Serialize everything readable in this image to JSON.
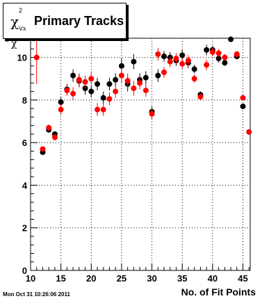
{
  "chart_data": {
    "type": "scatter",
    "title": "Primary Tracks",
    "ylabel_symbol": "χ",
    "ylabel_superscript": "2",
    "ylabel_subscript": "Vx",
    "xlabel": "No. of Fit Points",
    "xlim": [
      10,
      46.2
    ],
    "ylim": [
      0,
      10.9
    ],
    "x_ticks": [
      "10",
      "15",
      "20",
      "25",
      "30",
      "35",
      "40",
      "45"
    ],
    "y_ticks": [
      "0",
      "2",
      "4",
      "6",
      "8",
      "10"
    ],
    "grid": true,
    "series": [
      {
        "color": "#000000",
        "x": [
          12,
          13,
          14,
          15,
          16,
          17,
          18,
          19,
          20,
          21,
          22,
          23,
          24,
          25,
          26,
          27,
          28,
          29,
          30,
          31,
          32,
          33,
          34,
          35,
          36,
          37,
          38,
          39,
          40,
          41,
          42,
          43,
          44,
          45
        ],
        "y": [
          5.55,
          6.6,
          6.4,
          7.9,
          8.5,
          9.15,
          8.9,
          8.55,
          8.4,
          8.75,
          8.1,
          8.75,
          8.95,
          9.6,
          8.75,
          9.8,
          8.95,
          9.05,
          7.45,
          9.15,
          10.05,
          10.0,
          9.85,
          10.1,
          9.75,
          9.45,
          8.25,
          10.35,
          10.35,
          9.95,
          9.75,
          10.85,
          10.05,
          7.7
        ],
        "err": [
          0.1,
          0.12,
          0.12,
          0.25,
          0.25,
          0.3,
          0.3,
          0.3,
          0.28,
          0.3,
          0.3,
          0.3,
          0.3,
          0.35,
          0.35,
          0.35,
          0.3,
          0.3,
          0.25,
          0.3,
          0.25,
          0.25,
          0.25,
          0.25,
          0.25,
          0.2,
          0.15,
          0.25,
          0.2,
          0.2,
          0.15,
          0.1,
          0.15,
          0.1
        ]
      },
      {
        "color": "#ff0000",
        "x": [
          11,
          12,
          13,
          14,
          15,
          16,
          17,
          18,
          19,
          20,
          21,
          22,
          23,
          24,
          25,
          26,
          27,
          28,
          29,
          30,
          31,
          32,
          33,
          34,
          35,
          36,
          37,
          38,
          39,
          40,
          41,
          42,
          44,
          45,
          46
        ],
        "y": [
          10.0,
          5.7,
          6.7,
          6.25,
          7.55,
          8.45,
          8.3,
          8.95,
          8.85,
          9.0,
          7.55,
          7.55,
          8.05,
          8.4,
          9.15,
          8.9,
          8.55,
          8.8,
          8.45,
          7.35,
          10.15,
          9.3,
          9.8,
          9.95,
          9.7,
          9.85,
          9.0,
          8.15,
          9.65,
          10.25,
          10.2,
          10.0,
          10.15,
          8.1,
          6.5
        ],
        "err": [
          1.25,
          0.12,
          0.15,
          0.15,
          0.25,
          0.25,
          0.3,
          0.3,
          0.3,
          0.3,
          0.3,
          0.3,
          0.3,
          0.3,
          0.35,
          0.35,
          0.35,
          0.3,
          0.3,
          0.25,
          0.3,
          0.25,
          0.25,
          0.25,
          0.25,
          0.25,
          0.2,
          0.15,
          0.25,
          0.2,
          0.2,
          0.15,
          0.15,
          0.12,
          0.1
        ]
      }
    ]
  },
  "footer_timestamp": "Mon Oct 31 10:26:06 2011"
}
